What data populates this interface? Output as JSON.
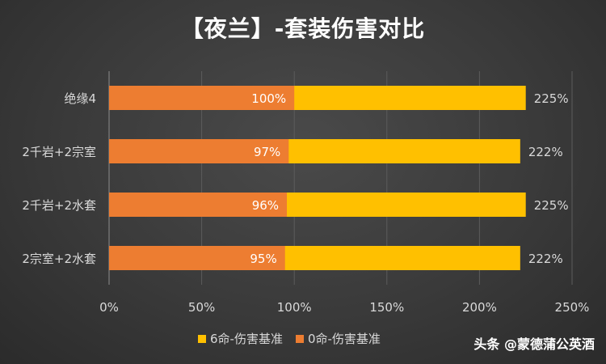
{
  "watermark": "头条 @蒙德蒲公英酒",
  "chart_data": {
    "type": "bar",
    "orientation": "horizontal",
    "title": "【夜兰】-套装伤害对比",
    "categories": [
      "绝缘4",
      "2千岩+2宗室",
      "2千岩+2水套",
      "2宗室+2水套"
    ],
    "series": [
      {
        "name": "0命-伤害基准",
        "color": "#ed7d31",
        "values": [
          100,
          97,
          96,
          95
        ],
        "labels": [
          "100%",
          "97%",
          "96%",
          "95%"
        ]
      },
      {
        "name": "6命-伤害基准",
        "color": "#ffc000",
        "values": [
          225,
          222,
          225,
          222
        ],
        "labels": [
          "225%",
          "222%",
          "225%",
          "222%"
        ]
      }
    ],
    "xlim": [
      0,
      250
    ],
    "x_ticks": [
      "0%",
      "50%",
      "100%",
      "150%",
      "200%",
      "250%"
    ],
    "x_tick_values": [
      0,
      50,
      100,
      150,
      200,
      250
    ],
    "grid": true,
    "legend_position": "bottom",
    "legend_order": [
      "6命-伤害基准",
      "0命-伤害基准"
    ]
  }
}
